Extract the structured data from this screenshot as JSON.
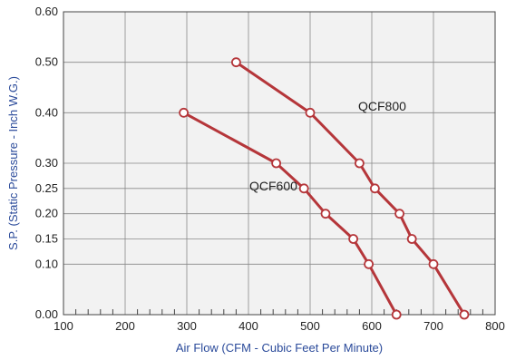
{
  "chart_data": {
    "type": "line",
    "title": "",
    "xlabel": "Air Flow (CFM - Cubic Feet Per Minute)",
    "ylabel": "S.P. (Static Pressure - Inch W.G.)",
    "xlim": [
      100,
      800
    ],
    "ylim": [
      0,
      0.6
    ],
    "x_ticks": [
      "100",
      "200",
      "300",
      "400",
      "500",
      "600",
      "700",
      "800"
    ],
    "y_ticks": [
      "0.00",
      "0.10",
      "0.15",
      "0.20",
      "0.25",
      "0.30",
      "0.40",
      "0.50",
      "0.60"
    ],
    "y_tick_values": [
      0,
      0.1,
      0.15,
      0.2,
      0.25,
      0.3,
      0.4,
      0.5,
      0.6
    ],
    "grid": true,
    "series": [
      {
        "name": "QCF800",
        "color": "#b5363a",
        "x": [
          380,
          500,
          580,
          605,
          645,
          665,
          700,
          750
        ],
        "y": [
          0.5,
          0.4,
          0.3,
          0.25,
          0.2,
          0.15,
          0.1,
          0.0
        ]
      },
      {
        "name": "QCF600",
        "color": "#b5363a",
        "x": [
          295,
          445,
          490,
          525,
          570,
          595,
          640
        ],
        "y": [
          0.4,
          0.3,
          0.25,
          0.2,
          0.15,
          0.1,
          0.0
        ]
      }
    ],
    "annotations": [
      {
        "text": "QCF800",
        "x": 630,
        "y": 0.33
      },
      {
        "text": "QCF600",
        "x": 350,
        "y": 0.21
      }
    ]
  },
  "colors": {
    "plot_background": "#f2f2f2",
    "grid": "#888888",
    "axis_title": "#2a4a9a",
    "line": "#b5363a"
  }
}
